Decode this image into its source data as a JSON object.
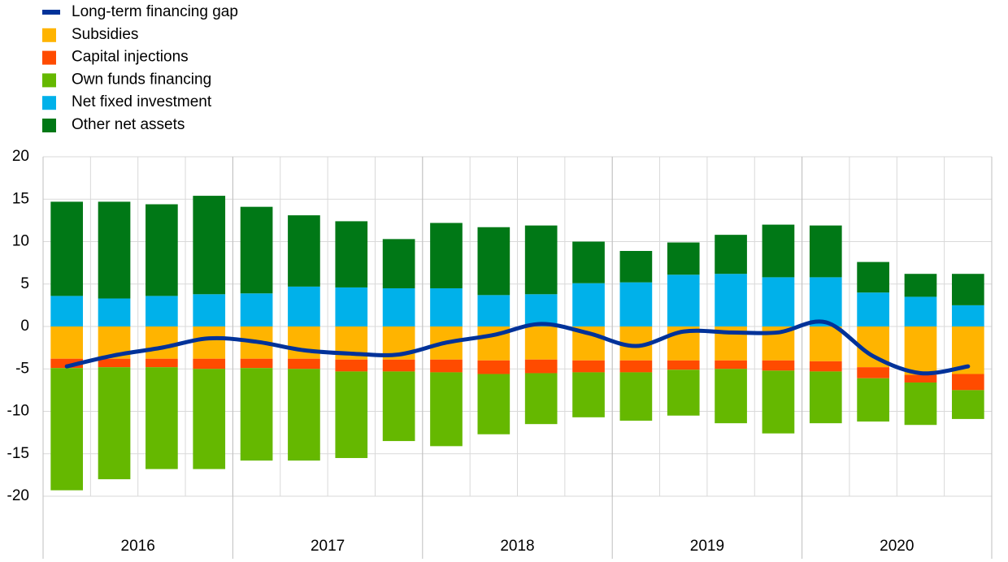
{
  "chart_data": {
    "type": "bar",
    "stacked": true,
    "grid": true,
    "year_labels": [
      "2016",
      "2017",
      "2018",
      "2019",
      "2020"
    ],
    "ylim": [
      -20,
      20
    ],
    "yticks": [
      -20,
      -15,
      -10,
      -5,
      0,
      5,
      10,
      15,
      20
    ],
    "series": [
      {
        "name": "Long-term financing gap",
        "type": "line",
        "color": "#003299",
        "values": [
          -4.7,
          -3.4,
          -2.5,
          -1.4,
          -1.8,
          -2.8,
          -3.2,
          -3.3,
          -1.9,
          -1.0,
          0.3,
          -0.8,
          -2.3,
          -0.6,
          -0.7,
          -0.7,
          0.5,
          -3.5,
          -5.5,
          -4.7
        ]
      },
      {
        "name": "Subsidies",
        "color": "#ffb400",
        "values": [
          -3.8,
          -3.8,
          -3.8,
          -3.8,
          -3.8,
          -3.8,
          -3.9,
          -3.9,
          -3.9,
          -4.0,
          -3.9,
          -4.0,
          -4.0,
          -4.0,
          -4.0,
          -4.0,
          -4.1,
          -4.8,
          -5.7,
          -5.6
        ]
      },
      {
        "name": "Capital injections",
        "color": "#ff4b00",
        "values": [
          -1.1,
          -1.0,
          -1.0,
          -1.2,
          -1.1,
          -1.2,
          -1.4,
          -1.4,
          -1.5,
          -1.6,
          -1.6,
          -1.4,
          -1.4,
          -1.1,
          -1.0,
          -1.2,
          -1.2,
          -1.3,
          -0.9,
          -1.9
        ]
      },
      {
        "name": "Own funds financing",
        "color": "#65b800",
        "values": [
          -14.4,
          -13.2,
          -12.0,
          -11.8,
          -10.9,
          -10.8,
          -10.2,
          -8.2,
          -8.7,
          -7.1,
          -6.0,
          -5.3,
          -5.7,
          -5.4,
          -6.4,
          -7.4,
          -6.1,
          -5.1,
          -5.0,
          -3.4
        ]
      },
      {
        "name": "Net fixed investment",
        "color": "#00b1ea",
        "values": [
          3.6,
          3.3,
          3.6,
          3.8,
          3.9,
          4.7,
          4.6,
          4.5,
          4.5,
          3.7,
          3.8,
          5.1,
          5.2,
          6.1,
          6.2,
          5.8,
          5.8,
          4.0,
          3.5,
          2.5
        ]
      },
      {
        "name": "Other net assets",
        "color": "#007816",
        "values": [
          11.1,
          11.4,
          10.8,
          11.6,
          10.2,
          8.4,
          7.8,
          5.8,
          7.7,
          8.0,
          8.1,
          4.9,
          3.7,
          3.8,
          4.6,
          6.2,
          6.1,
          3.6,
          2.7,
          3.7
        ]
      }
    ]
  }
}
